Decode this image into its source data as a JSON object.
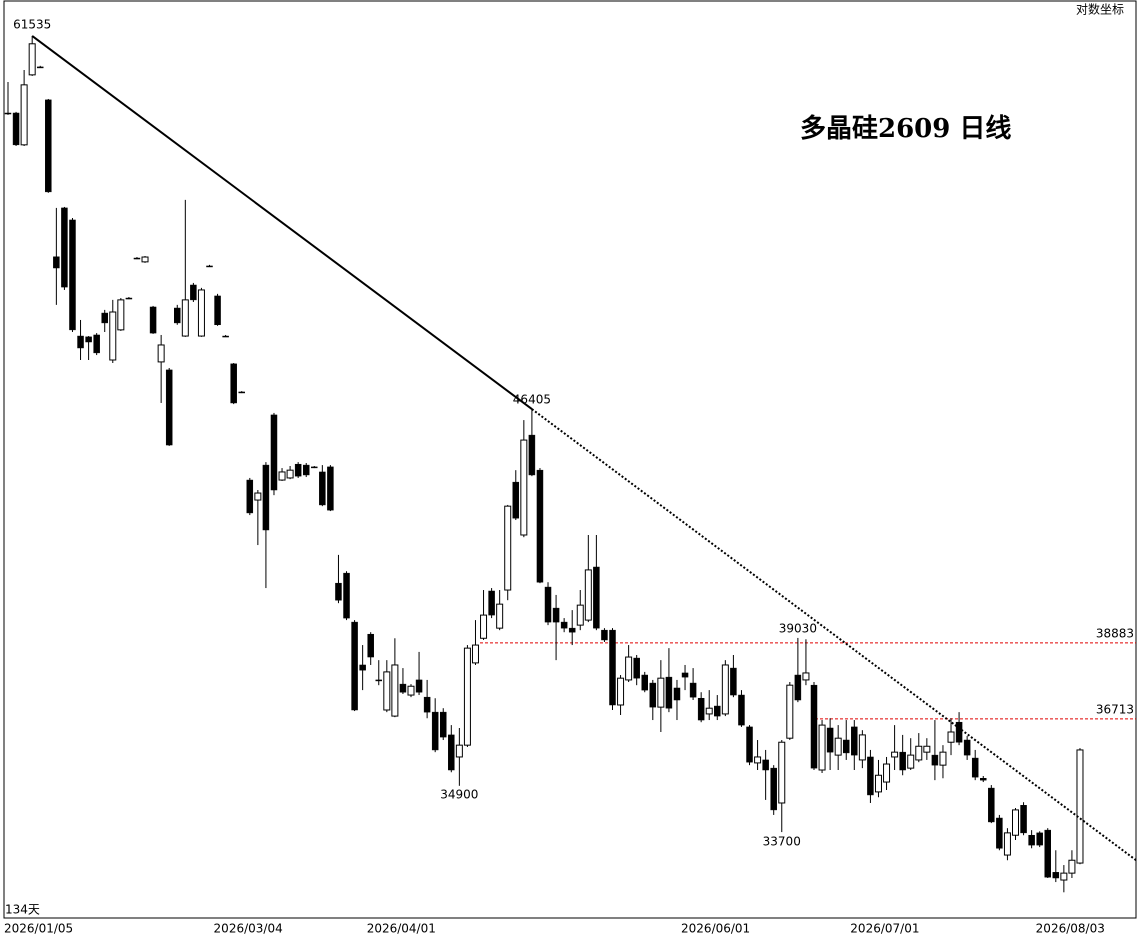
{
  "chart_data": {
    "type": "candlestick",
    "title": "多晶硅2609 日线",
    "scale_label": "对数坐标",
    "days_label": "134天",
    "log": true,
    "ylim": [
      31580,
      63230
    ],
    "categories": [
      "2026/01/05",
      null,
      null,
      null,
      null,
      null,
      null,
      null,
      null,
      null,
      null,
      null,
      null,
      null,
      null,
      null,
      null,
      null,
      null,
      null,
      null,
      null,
      null,
      null,
      null,
      null,
      "2026/03/04",
      null,
      null,
      null,
      null,
      null,
      null,
      null,
      null,
      null,
      null,
      null,
      null,
      null,
      null,
      null,
      null,
      null,
      null,
      "2026/04/01",
      null,
      null,
      null,
      null,
      null,
      null,
      null,
      null,
      null,
      null,
      null,
      null,
      null,
      null,
      null,
      null,
      null,
      null,
      null,
      null,
      null,
      null,
      null,
      null,
      null,
      null,
      null,
      null,
      null,
      null,
      null,
      null,
      null,
      null,
      null,
      null,
      null,
      null,
      "2026/06/01",
      null,
      null,
      null,
      null,
      null,
      null,
      null,
      null,
      null,
      null,
      null,
      null,
      null,
      null,
      null,
      null,
      null,
      null,
      null,
      null,
      "2026/07/01",
      null,
      null,
      null,
      null,
      null,
      null,
      null,
      null,
      null,
      null,
      null,
      null,
      null,
      null,
      null,
      null,
      null,
      null,
      null,
      null,
      null,
      null,
      "2026/08/03",
      null,
      null,
      null,
      null,
      null
    ],
    "open": [
      58050,
      58050,
      56670,
      59750,
      60110,
      58630,
      52070,
      54030,
      53540,
      49040,
      49010,
      49080,
      49900,
      48160,
      49270,
      50470,
      52020,
      51870,
      50130,
      48090,
      47800,
      50090,
      49040,
      50970,
      49040,
      51710,
      50550,
      49040,
      48020,
      47010,
      43980,
      43320,
      44480,
      46200,
      43980,
      44050,
      44510,
      44480,
      44420,
      44250,
      44420,
      40680,
      40990,
      39500,
      38240,
      39140,
      37810,
      36960,
      36790,
      37690,
      37380,
      37810,
      37320,
      36900,
      36900,
      36270,
      35670,
      35990,
      38300,
      39020,
      40440,
      39320,
      40470,
      43910,
      42190,
      45500,
      44310,
      40560,
      39920,
      39500,
      39320,
      39410,
      39560,
      41180,
      39260,
      39260,
      37100,
      37810,
      38440,
      37950,
      37720,
      37040,
      37890,
      37580,
      38010,
      37720,
      37290,
      36850,
      37070,
      36850,
      38150,
      37380,
      36490,
      35510,
      35590,
      35370,
      34450,
      36180,
      37950,
      37810,
      37660,
      35320,
      36460,
      35720,
      36130,
      36490,
      35590,
      35670,
      34740,
      35000,
      35670,
      35800,
      35370,
      35590,
      35800,
      35720,
      35450,
      36070,
      36620,
      36130,
      35640,
      35100,
      34840,
      34060,
      33120,
      33620,
      34390,
      33620,
      33680,
      33750,
      32690,
      32500,
      32670,
      32920
    ],
    "high": [
      59430,
      58100,
      59970,
      61535,
      60160,
      58670,
      54030,
      54070,
      53620,
      49640,
      49040,
      49150,
      50020,
      50400,
      50470,
      50510,
      52060,
      52100,
      50170,
      49080,
      47870,
      50210,
      54360,
      51050,
      50860,
      51750,
      50630,
      49080,
      48050,
      47040,
      44050,
      43650,
      44580,
      46270,
      44380,
      44450,
      44580,
      44550,
      44450,
      44480,
      44480,
      41560,
      41050,
      39560,
      38820,
      39200,
      38380,
      38380,
      39020,
      38150,
      37690,
      38620,
      37810,
      37290,
      37010,
      36540,
      36460,
      38820,
      39560,
      40470,
      40530,
      40470,
      43160,
      44310,
      46020,
      46405,
      44380,
      40710,
      40320,
      39620,
      39860,
      40470,
      42190,
      42190,
      39320,
      39320,
      37950,
      38820,
      38530,
      38040,
      37810,
      38380,
      38730,
      37810,
      38240,
      38150,
      37460,
      37520,
      37380,
      38380,
      38530,
      37520,
      36540,
      36130,
      35860,
      35450,
      36130,
      37750,
      39030,
      38990,
      37750,
      36680,
      36730,
      36540,
      36680,
      36680,
      36400,
      35860,
      35590,
      35670,
      36540,
      36270,
      36180,
      36320,
      36180,
      36680,
      35990,
      36730,
      36900,
      36240,
      35860,
      35160,
      34920,
      34140,
      33800,
      34320,
      34470,
      33750,
      33720,
      33800,
      33240,
      32870,
      33240,
      35910
    ],
    "low": [
      57970,
      56620,
      56620,
      59700,
      60070,
      54650,
      50210,
      50780,
      49190,
      48160,
      48160,
      48340,
      49190,
      48050,
      49230,
      50430,
      51980,
      51830,
      49120,
      46620,
      45130,
      49460,
      49010,
      50320,
      49010,
      51670,
      49420,
      49010,
      46580,
      46970,
      42830,
      41870,
      40530,
      43480,
      43950,
      44010,
      44050,
      44080,
      44380,
      43120,
      42960,
      40070,
      39560,
      36930,
      37520,
      38240,
      37660,
      36900,
      36760,
      37410,
      37320,
      37380,
      36730,
      35800,
      36130,
      35260,
      34900,
      35940,
      38240,
      38970,
      39620,
      39260,
      40160,
      42670,
      42120,
      44110,
      40680,
      39410,
      38380,
      39200,
      38820,
      39260,
      39500,
      39260,
      38910,
      36960,
      36820,
      37750,
      37660,
      37460,
      36680,
      36350,
      36900,
      36680,
      37520,
      37240,
      36620,
      36680,
      36680,
      36790,
      37320,
      36490,
      35450,
      35320,
      34530,
      34140,
      33700,
      36130,
      37180,
      37660,
      35320,
      35240,
      35320,
      35320,
      35590,
      35320,
      35370,
      34450,
      34600,
      34790,
      35320,
      35180,
      35320,
      35530,
      35590,
      35050,
      35100,
      35720,
      35990,
      35590,
      35050,
      35000,
      33930,
      33240,
      32990,
      33500,
      33620,
      33290,
      33320,
      32550,
      32450,
      32200,
      32550,
      32890
    ],
    "close": [
      58050,
      56670,
      59300,
      61170,
      60110,
      54690,
      51630,
      50890,
      49270,
      48600,
      48820,
      48420,
      49530,
      49940,
      50400,
      50470,
      52020,
      52060,
      49150,
      48710,
      45160,
      49530,
      50400,
      50400,
      50780,
      51710,
      49460,
      49040,
      46620,
      47010,
      42900,
      43550,
      42350,
      43650,
      44250,
      44310,
      44110,
      44150,
      44420,
      43160,
      42990,
      40160,
      39620,
      36960,
      38090,
      38470,
      37810,
      38040,
      38240,
      37460,
      37630,
      37460,
      36900,
      35860,
      36210,
      35320,
      35990,
      38730,
      38820,
      39710,
      39710,
      40040,
      43120,
      42730,
      45330,
      44150,
      40710,
      39500,
      39500,
      39320,
      39200,
      40010,
      41090,
      39320,
      38970,
      37100,
      37860,
      38470,
      37860,
      37520,
      37040,
      37860,
      37010,
      37240,
      37890,
      37320,
      36680,
      37010,
      36790,
      38240,
      37380,
      36540,
      35530,
      35670,
      35320,
      34270,
      36070,
      37660,
      37240,
      38010,
      35370,
      36540,
      35800,
      36180,
      35780,
      35720,
      36270,
      34660,
      35180,
      35480,
      35800,
      35320,
      35720,
      35960,
      35960,
      35450,
      35800,
      36350,
      36070,
      35720,
      35130,
      35050,
      33960,
      33290,
      33680,
      34270,
      33680,
      33370,
      33370,
      32570,
      32550,
      32670,
      32990,
      35860
    ],
    "up_color": "#ffffff",
    "down_color": "#000000",
    "hlines": [
      38883,
      36713
    ],
    "hline_color": "#e00000"
  }
}
